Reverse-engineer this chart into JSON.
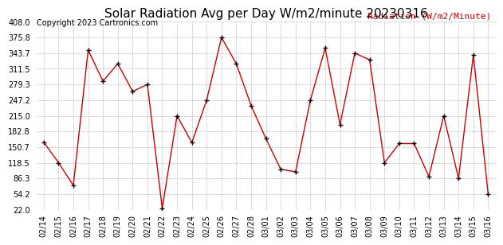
{
  "title": "Solar Radiation Avg per Day W/m2/minute 20230316",
  "copyright_text": "Copyright 2023 Cartronics.com",
  "legend_label": "Radiation (W/m2/Minute)",
  "dates": [
    "02/14",
    "02/15",
    "02/16",
    "02/17",
    "02/18",
    "02/19",
    "02/20",
    "02/21",
    "02/22",
    "02/23",
    "02/24",
    "02/25",
    "02/26",
    "02/27",
    "02/28",
    "03/01",
    "03/02",
    "03/03",
    "03/04",
    "03/05",
    "03/06",
    "03/07",
    "03/08",
    "03/09",
    "03/10",
    "03/11",
    "03/12",
    "03/13",
    "03/14",
    "03/15",
    "03/16"
  ],
  "values": [
    161.0,
    118.5,
    72.0,
    350.0,
    286.0,
    322.0,
    265.0,
    279.3,
    25.0,
    215.0,
    160.0,
    247.2,
    375.8,
    322.0,
    236.0,
    168.0,
    105.0,
    100.0,
    247.2,
    354.0,
    197.0,
    343.7,
    330.0,
    118.5,
    158.0,
    158.0,
    90.0,
    215.0,
    86.3,
    340.0,
    54.2
  ],
  "ylim": [
    22.0,
    408.0
  ],
  "yticks": [
    22.0,
    54.2,
    86.3,
    118.5,
    150.7,
    182.8,
    215.0,
    247.2,
    279.3,
    311.5,
    343.7,
    375.8,
    408.0
  ],
  "line_color": "#cc0000",
  "marker_color": "#000000",
  "background_color": "#ffffff",
  "grid_color": "#bbbbbb",
  "title_fontsize": 11,
  "tick_fontsize": 7,
  "copyright_fontsize": 7,
  "legend_fontsize": 8,
  "legend_color": "#cc0000"
}
